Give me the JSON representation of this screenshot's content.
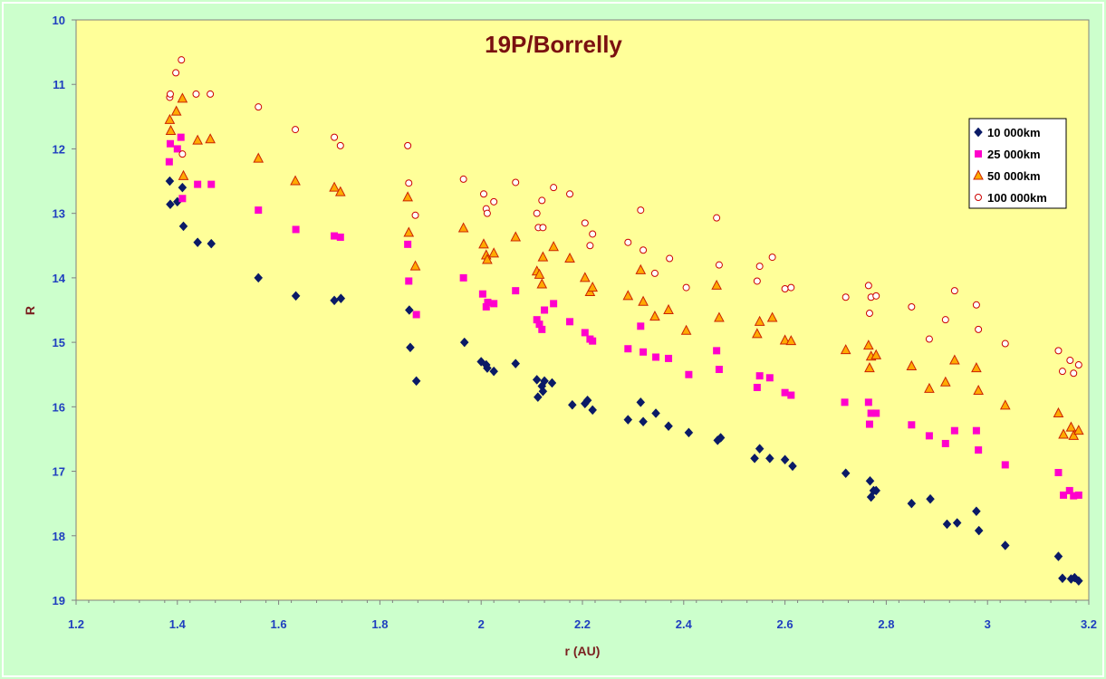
{
  "colors": {
    "page_background": "#ccffcc",
    "plot_background": "#ffff99",
    "title": "#7a1010",
    "axis_title": "#7a1f1f",
    "tick_label": "#1f3fbf"
  },
  "chart_data": {
    "type": "scatter",
    "title": "19P/Borrelly",
    "xlabel": "r (AU)",
    "ylabel": "R",
    "xlim": [
      1.2,
      3.2
    ],
    "ylim": [
      10,
      19
    ],
    "y_inverted": true,
    "x_ticks": [
      "1.2",
      "1.4",
      "1.6",
      "1.8",
      "2",
      "2.2",
      "2.4",
      "2.6",
      "2.8",
      "3",
      "3.2"
    ],
    "y_ticks": [
      "10",
      "11",
      "12",
      "13",
      "14",
      "15",
      "16",
      "17",
      "18",
      "19"
    ],
    "grid": false,
    "legend_position": "right",
    "series": [
      {
        "name": "10 000km",
        "marker": "diamond",
        "color": "#0a1a66",
        "points": [
          [
            1.385,
            12.5
          ],
          [
            1.386,
            12.86
          ],
          [
            1.4,
            12.82
          ],
          [
            1.41,
            12.6
          ],
          [
            1.412,
            13.2
          ],
          [
            1.44,
            13.45
          ],
          [
            1.467,
            13.47
          ],
          [
            1.56,
            14.0
          ],
          [
            1.634,
            14.28
          ],
          [
            1.71,
            14.35
          ],
          [
            1.723,
            14.32
          ],
          [
            1.858,
            14.5
          ],
          [
            1.86,
            15.08
          ],
          [
            1.872,
            15.6
          ],
          [
            1.967,
            15.0
          ],
          [
            2.0,
            15.3
          ],
          [
            2.01,
            15.35
          ],
          [
            2.012,
            15.4
          ],
          [
            2.025,
            15.45
          ],
          [
            2.068,
            15.33
          ],
          [
            2.11,
            15.58
          ],
          [
            2.112,
            15.85
          ],
          [
            2.12,
            15.68
          ],
          [
            2.122,
            15.76
          ],
          [
            2.125,
            15.6
          ],
          [
            2.14,
            15.63
          ],
          [
            2.18,
            15.97
          ],
          [
            2.205,
            15.95
          ],
          [
            2.21,
            15.9
          ],
          [
            2.22,
            16.05
          ],
          [
            2.29,
            16.2
          ],
          [
            2.315,
            15.93
          ],
          [
            2.32,
            16.23
          ],
          [
            2.345,
            16.1
          ],
          [
            2.37,
            16.3
          ],
          [
            2.41,
            16.4
          ],
          [
            2.467,
            16.52
          ],
          [
            2.473,
            16.48
          ],
          [
            2.54,
            16.8
          ],
          [
            2.55,
            16.65
          ],
          [
            2.57,
            16.8
          ],
          [
            2.6,
            16.82
          ],
          [
            2.615,
            16.92
          ],
          [
            2.72,
            17.03
          ],
          [
            2.768,
            17.15
          ],
          [
            2.77,
            17.4
          ],
          [
            2.775,
            17.3
          ],
          [
            2.78,
            17.3
          ],
          [
            2.85,
            17.5
          ],
          [
            2.887,
            17.43
          ],
          [
            2.92,
            17.82
          ],
          [
            2.94,
            17.8
          ],
          [
            2.978,
            17.62
          ],
          [
            2.983,
            17.92
          ],
          [
            3.035,
            18.15
          ],
          [
            3.14,
            18.32
          ],
          [
            3.148,
            18.66
          ],
          [
            3.165,
            18.67
          ],
          [
            3.172,
            18.65
          ],
          [
            3.18,
            18.7
          ]
        ]
      },
      {
        "name": "25 000km",
        "marker": "square",
        "color": "#ff00cc",
        "points": [
          [
            1.384,
            12.2
          ],
          [
            1.386,
            11.92
          ],
          [
            1.4,
            12.0
          ],
          [
            1.407,
            11.82
          ],
          [
            1.41,
            12.77
          ],
          [
            1.44,
            12.55
          ],
          [
            1.467,
            12.55
          ],
          [
            1.56,
            12.95
          ],
          [
            1.634,
            13.25
          ],
          [
            1.71,
            13.35
          ],
          [
            1.722,
            13.37
          ],
          [
            1.855,
            13.48
          ],
          [
            1.857,
            14.05
          ],
          [
            1.872,
            14.57
          ],
          [
            1.965,
            14.0
          ],
          [
            2.003,
            14.25
          ],
          [
            2.01,
            14.45
          ],
          [
            2.013,
            14.38
          ],
          [
            2.025,
            14.4
          ],
          [
            2.068,
            14.2
          ],
          [
            2.11,
            14.65
          ],
          [
            2.115,
            14.72
          ],
          [
            2.12,
            14.8
          ],
          [
            2.125,
            14.5
          ],
          [
            2.143,
            14.4
          ],
          [
            2.175,
            14.68
          ],
          [
            2.205,
            14.85
          ],
          [
            2.215,
            14.95
          ],
          [
            2.22,
            14.98
          ],
          [
            2.29,
            15.1
          ],
          [
            2.315,
            14.75
          ],
          [
            2.32,
            15.15
          ],
          [
            2.345,
            15.23
          ],
          [
            2.37,
            15.25
          ],
          [
            2.41,
            15.5
          ],
          [
            2.465,
            15.13
          ],
          [
            2.47,
            15.42
          ],
          [
            2.545,
            15.7
          ],
          [
            2.55,
            15.52
          ],
          [
            2.57,
            15.55
          ],
          [
            2.6,
            15.78
          ],
          [
            2.612,
            15.82
          ],
          [
            2.718,
            15.93
          ],
          [
            2.765,
            15.93
          ],
          [
            2.767,
            16.27
          ],
          [
            2.77,
            16.1
          ],
          [
            2.78,
            16.1
          ],
          [
            2.85,
            16.28
          ],
          [
            2.885,
            16.45
          ],
          [
            2.917,
            16.57
          ],
          [
            2.935,
            16.37
          ],
          [
            2.978,
            16.37
          ],
          [
            2.982,
            16.67
          ],
          [
            3.035,
            16.9
          ],
          [
            3.14,
            17.02
          ],
          [
            3.15,
            17.37
          ],
          [
            3.162,
            17.3
          ],
          [
            3.17,
            17.38
          ],
          [
            3.18,
            17.37
          ]
        ]
      },
      {
        "name": "50 000km",
        "marker": "triangle",
        "color": "#ffaa00",
        "points": [
          [
            1.385,
            11.55
          ],
          [
            1.387,
            11.72
          ],
          [
            1.398,
            11.42
          ],
          [
            1.41,
            11.22
          ],
          [
            1.412,
            12.42
          ],
          [
            1.44,
            11.87
          ],
          [
            1.465,
            11.85
          ],
          [
            1.56,
            12.15
          ],
          [
            1.633,
            12.5
          ],
          [
            1.71,
            12.6
          ],
          [
            1.722,
            12.67
          ],
          [
            1.855,
            12.75
          ],
          [
            1.857,
            13.3
          ],
          [
            1.87,
            13.82
          ],
          [
            1.965,
            13.23
          ],
          [
            2.005,
            13.48
          ],
          [
            2.01,
            13.65
          ],
          [
            2.012,
            13.72
          ],
          [
            2.025,
            13.62
          ],
          [
            2.068,
            13.37
          ],
          [
            2.11,
            13.9
          ],
          [
            2.115,
            13.95
          ],
          [
            2.12,
            14.1
          ],
          [
            2.122,
            13.68
          ],
          [
            2.143,
            13.52
          ],
          [
            2.175,
            13.7
          ],
          [
            2.205,
            14.0
          ],
          [
            2.215,
            14.22
          ],
          [
            2.22,
            14.15
          ],
          [
            2.29,
            14.28
          ],
          [
            2.315,
            13.88
          ],
          [
            2.32,
            14.37
          ],
          [
            2.343,
            14.6
          ],
          [
            2.37,
            14.5
          ],
          [
            2.405,
            14.82
          ],
          [
            2.465,
            14.12
          ],
          [
            2.47,
            14.62
          ],
          [
            2.545,
            14.87
          ],
          [
            2.55,
            14.68
          ],
          [
            2.575,
            14.62
          ],
          [
            2.6,
            14.97
          ],
          [
            2.612,
            14.98
          ],
          [
            2.72,
            15.12
          ],
          [
            2.765,
            15.05
          ],
          [
            2.767,
            15.4
          ],
          [
            2.77,
            15.22
          ],
          [
            2.78,
            15.2
          ],
          [
            2.85,
            15.37
          ],
          [
            2.885,
            15.72
          ],
          [
            2.917,
            15.62
          ],
          [
            2.935,
            15.28
          ],
          [
            2.978,
            15.4
          ],
          [
            2.982,
            15.75
          ],
          [
            3.035,
            15.98
          ],
          [
            3.14,
            16.1
          ],
          [
            3.15,
            16.43
          ],
          [
            3.165,
            16.32
          ],
          [
            3.17,
            16.45
          ],
          [
            3.18,
            16.37
          ]
        ]
      },
      {
        "name": "100 000km",
        "marker": "circle",
        "color": "#cc0000",
        "points": [
          [
            1.385,
            11.2
          ],
          [
            1.386,
            11.15
          ],
          [
            1.397,
            10.82
          ],
          [
            1.408,
            10.62
          ],
          [
            1.41,
            12.08
          ],
          [
            1.437,
            11.15
          ],
          [
            1.465,
            11.15
          ],
          [
            1.56,
            11.35
          ],
          [
            1.633,
            11.7
          ],
          [
            1.71,
            11.82
          ],
          [
            1.722,
            11.95
          ],
          [
            1.855,
            11.95
          ],
          [
            1.857,
            12.53
          ],
          [
            1.87,
            13.03
          ],
          [
            1.965,
            12.47
          ],
          [
            2.005,
            12.7
          ],
          [
            2.01,
            12.93
          ],
          [
            2.012,
            13.0
          ],
          [
            2.025,
            12.82
          ],
          [
            2.068,
            12.52
          ],
          [
            2.11,
            13.0
          ],
          [
            2.113,
            13.22
          ],
          [
            2.12,
            12.8
          ],
          [
            2.122,
            13.22
          ],
          [
            2.143,
            12.6
          ],
          [
            2.175,
            12.7
          ],
          [
            2.205,
            13.15
          ],
          [
            2.215,
            13.5
          ],
          [
            2.22,
            13.32
          ],
          [
            2.29,
            13.45
          ],
          [
            2.315,
            12.95
          ],
          [
            2.32,
            13.57
          ],
          [
            2.343,
            13.93
          ],
          [
            2.372,
            13.7
          ],
          [
            2.405,
            14.15
          ],
          [
            2.465,
            13.07
          ],
          [
            2.47,
            13.8
          ],
          [
            2.545,
            14.05
          ],
          [
            2.55,
            13.82
          ],
          [
            2.575,
            13.68
          ],
          [
            2.6,
            14.17
          ],
          [
            2.612,
            14.15
          ],
          [
            2.72,
            14.3
          ],
          [
            2.765,
            14.12
          ],
          [
            2.767,
            14.55
          ],
          [
            2.77,
            14.3
          ],
          [
            2.78,
            14.28
          ],
          [
            2.85,
            14.45
          ],
          [
            2.885,
            14.95
          ],
          [
            2.917,
            14.65
          ],
          [
            2.935,
            14.2
          ],
          [
            2.978,
            14.42
          ],
          [
            2.982,
            14.8
          ],
          [
            3.035,
            15.02
          ],
          [
            3.14,
            15.13
          ],
          [
            3.148,
            15.45
          ],
          [
            3.163,
            15.28
          ],
          [
            3.17,
            15.48
          ],
          [
            3.18,
            15.35
          ]
        ]
      }
    ]
  }
}
